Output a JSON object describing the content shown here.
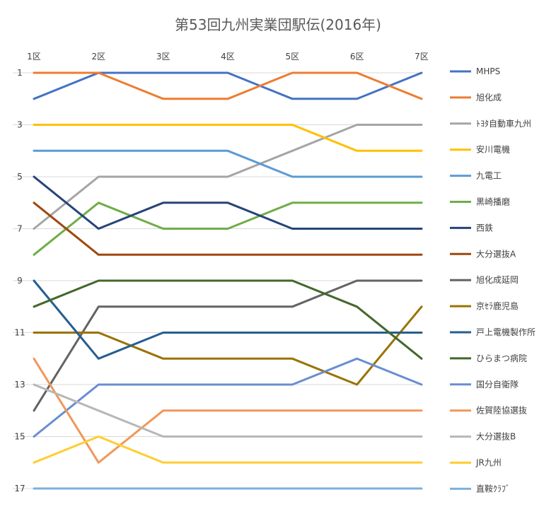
{
  "chart_data": {
    "type": "line",
    "title": "第53回九州実業団駅伝(2016年)",
    "xlabel": "",
    "ylabel": "",
    "categories": [
      "1区",
      "2区",
      "3区",
      "4区",
      "5区",
      "6区",
      "7区"
    ],
    "y_axis": {
      "reversed": true,
      "min": 1,
      "max": 17,
      "tick_labels": [
        1,
        3,
        5,
        7,
        9,
        11,
        13,
        15,
        17
      ]
    },
    "grid": true,
    "legend_position": "right",
    "series": [
      {
        "name": "MHPS",
        "color": "#4472C4",
        "values": [
          2,
          1,
          1,
          1,
          2,
          2,
          1
        ]
      },
      {
        "name": "旭化成",
        "color": "#ED7D31",
        "values": [
          1,
          1,
          2,
          2,
          1,
          1,
          2
        ]
      },
      {
        "name": "ﾄﾖﾀ自動車九州",
        "color": "#A5A5A5",
        "values": [
          7,
          5,
          5,
          5,
          4,
          3,
          3
        ]
      },
      {
        "name": "安川電機",
        "color": "#FFC000",
        "values": [
          3,
          3,
          3,
          3,
          3,
          4,
          4
        ]
      },
      {
        "name": "九電工",
        "color": "#5B9BD5",
        "values": [
          4,
          4,
          4,
          4,
          5,
          5,
          5
        ]
      },
      {
        "name": "黒崎播磨",
        "color": "#70AD47",
        "values": [
          8,
          6,
          7,
          7,
          6,
          6,
          6
        ]
      },
      {
        "name": "西鉄",
        "color": "#264478",
        "values": [
          5,
          7,
          6,
          6,
          7,
          7,
          7
        ]
      },
      {
        "name": "大分選抜A",
        "color": "#9E480E",
        "values": [
          6,
          8,
          8,
          8,
          8,
          8,
          8
        ]
      },
      {
        "name": "旭化成延岡",
        "color": "#636363",
        "values": [
          14,
          10,
          10,
          10,
          10,
          9,
          9
        ]
      },
      {
        "name": "京ｾﾗ鹿児島",
        "color": "#997300",
        "values": [
          11,
          11,
          12,
          12,
          12,
          13,
          10
        ]
      },
      {
        "name": "戸上電機製作所",
        "color": "#255E91",
        "values": [
          9,
          12,
          11,
          11,
          11,
          11,
          11
        ]
      },
      {
        "name": "ひらまつ病院",
        "color": "#43682B",
        "values": [
          10,
          9,
          9,
          9,
          9,
          10,
          12
        ]
      },
      {
        "name": "国分自衛隊",
        "color": "#698ED0",
        "values": [
          15,
          13,
          13,
          13,
          13,
          12,
          13
        ]
      },
      {
        "name": "佐賀陸協選抜",
        "color": "#F1975A",
        "values": [
          12,
          16,
          14,
          14,
          14,
          14,
          14
        ]
      },
      {
        "name": "大分選抜B",
        "color": "#B7B7B7",
        "values": [
          13,
          14,
          15,
          15,
          15,
          15,
          15
        ]
      },
      {
        "name": "JR九州",
        "color": "#FFCD33",
        "values": [
          16,
          15,
          16,
          16,
          16,
          16,
          16
        ]
      },
      {
        "name": "直鞍ｸﾗﾌﾞ",
        "color": "#7CAFDD",
        "values": [
          17,
          17,
          17,
          17,
          17,
          17,
          17
        ]
      }
    ]
  }
}
